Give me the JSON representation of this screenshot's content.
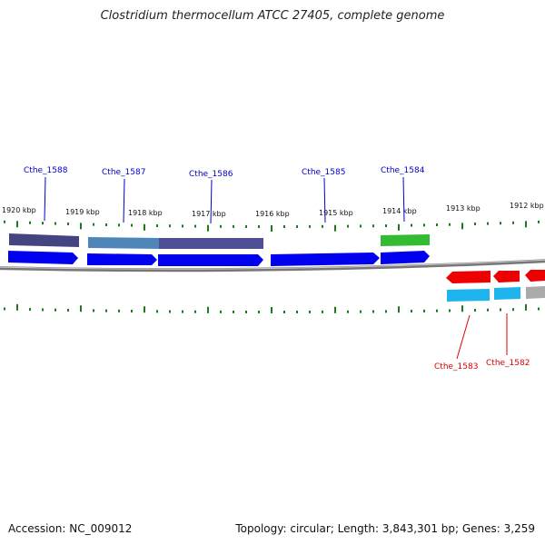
{
  "title": "Clostridium thermocellum ATCC 27405, complete genome",
  "footer": {
    "accession": "Accession: NC_009012",
    "topology": "Topology: circular; Length: 3,843,301 bp; Genes: 3,259"
  },
  "colors": {
    "gene_forward": "#0000ee",
    "gene_reverse": "#ee0000",
    "label_forward": "#0000cc",
    "label_reverse": "#dd0000",
    "cog_dark_purple": "#3a3a7a",
    "cog_steel_blue": "#4f86b8",
    "cog_slate": "#4f4f95",
    "cog_green": "#33bb33",
    "cog_cyan": "#1eb4ee",
    "cog_grey": "#aaaaaa",
    "tick_color": "#1b7a1b",
    "backbone": "#777777"
  },
  "scale_labels": [
    "1920 kbp",
    "1919 kbp",
    "1918 kbp",
    "1917 kbp",
    "1916 kbp",
    "1915 kbp",
    "1914 kbp",
    "1913 kbp",
    "1912 kbp"
  ],
  "forward_genes": [
    {
      "name": "Cthe_1588",
      "cog_color": "#3a3a7a"
    },
    {
      "name": "Cthe_1587",
      "cog_color": "#4f86b8"
    },
    {
      "name": "Cthe_1586",
      "cog_color": "#4f4f95"
    },
    {
      "name": "Cthe_1585",
      "cog_color": ""
    },
    {
      "name": "Cthe_1584",
      "cog_color": "#33bb33"
    }
  ],
  "reverse_genes": [
    {
      "name": "Cthe_1583",
      "cog_color": "#1eb4ee"
    },
    {
      "name": "Cthe_1582",
      "cog_color": "#1eb4ee"
    }
  ]
}
